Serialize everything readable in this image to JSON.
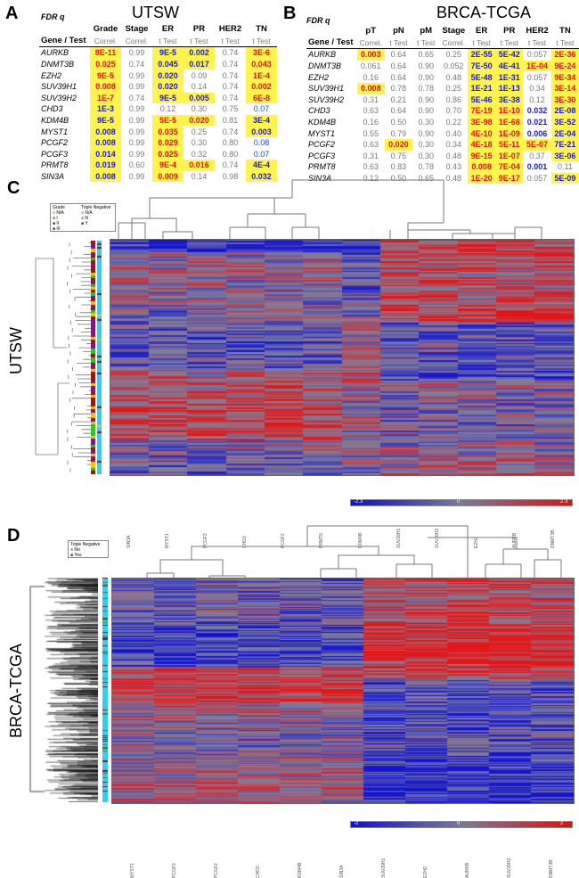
{
  "panelA": {
    "label": "A",
    "title": "UTSW",
    "fdr": "FDR q",
    "headers": [
      "Grade",
      "Stage",
      "ER",
      "PR",
      "HER2",
      "TN"
    ],
    "gene_test": "Gene / Test",
    "subheaders": [
      "Correl.",
      "Correl.",
      "t Test",
      "t Test",
      "t Test",
      "t Test"
    ],
    "rows": [
      {
        "gene": "AURKB",
        "v": [
          "8E-11",
          "0.99",
          "9E-5",
          "0.002",
          "0.74",
          "3E-6"
        ],
        "s": [
          "ry",
          "g",
          "by",
          "by",
          "g",
          "ry"
        ]
      },
      {
        "gene": "DNMT3B",
        "v": [
          "0.025",
          "0.74",
          "0.045",
          "0.017",
          "0.74",
          "0.043"
        ],
        "s": [
          "ry",
          "g",
          "by",
          "by",
          "g",
          "ry"
        ]
      },
      {
        "gene": "EZH2",
        "v": [
          "9E-5",
          "0.99",
          "0.020",
          "0.09",
          "0.74",
          "1E-4"
        ],
        "s": [
          "ry",
          "g",
          "by",
          "g",
          "g",
          "ry"
        ]
      },
      {
        "gene": "SUV39H1",
        "v": [
          "0.008",
          "0.99",
          "0.020",
          "0.14",
          "0.74",
          "0.002"
        ],
        "s": [
          "ry",
          "g",
          "by",
          "g",
          "g",
          "ry"
        ]
      },
      {
        "gene": "SUV39H2",
        "v": [
          "1E-7",
          "0.74",
          "9E-5",
          "0.005",
          "0.74",
          "6E-8"
        ],
        "s": [
          "ry",
          "g",
          "by",
          "by",
          "g",
          "ry"
        ]
      },
      {
        "gene": "CHD3",
        "v": [
          "1E-3",
          "0.99",
          "0.12",
          "0.30",
          "0.75",
          "0.07"
        ],
        "s": [
          "by",
          "g",
          "g",
          "g",
          "g",
          "lb"
        ]
      },
      {
        "gene": "KDM4B",
        "v": [
          "9E-5",
          "0.99",
          "5E-5",
          "0.020",
          "0.81",
          "3E-4"
        ],
        "s": [
          "by",
          "g",
          "ry",
          "ry",
          "g",
          "by"
        ]
      },
      {
        "gene": "MYST1",
        "v": [
          "0.008",
          "0.99",
          "0.035",
          "0.25",
          "0.74",
          "0.003"
        ],
        "s": [
          "by",
          "g",
          "ry",
          "g",
          "g",
          "by"
        ]
      },
      {
        "gene": "PCGF2",
        "v": [
          "0.008",
          "0.99",
          "0.029",
          "0.30",
          "0.80",
          "0.08"
        ],
        "s": [
          "by",
          "g",
          "ry",
          "g",
          "g",
          "lb"
        ]
      },
      {
        "gene": "PCGF3",
        "v": [
          "0.014",
          "0.99",
          "0.025",
          "0.32",
          "0.80",
          "0.07"
        ],
        "s": [
          "by",
          "g",
          "ry",
          "g",
          "g",
          "lb"
        ]
      },
      {
        "gene": "PRMT8",
        "v": [
          "0.019",
          "0.60",
          "9E-4",
          "0.016",
          "0.74",
          "4E-4"
        ],
        "s": [
          "by",
          "g",
          "ry",
          "ry",
          "g",
          "by"
        ]
      },
      {
        "gene": "SIN3A",
        "v": [
          "0.008",
          "0.99",
          "0.009",
          "0.14",
          "0.98",
          "0.032"
        ],
        "s": [
          "by",
          "g",
          "ry",
          "g",
          "g",
          "by"
        ]
      }
    ]
  },
  "panelB": {
    "label": "B",
    "title": "BRCA-TCGA",
    "fdr": "FDR q",
    "headers": [
      "pT",
      "pN",
      "pM",
      "Stage",
      "ER",
      "PR",
      "HER2",
      "TN"
    ],
    "gene_test": "Gene / Test",
    "subheaders": [
      "Correl.",
      "t Test",
      "t Test",
      "Correl.",
      "t Test",
      "t Test",
      "t Test",
      "t Test"
    ],
    "rows": [
      {
        "gene": "AURKB",
        "v": [
          "0.003",
          "0.64",
          "0.65",
          "0.25",
          "2E-55",
          "5E-42",
          "0.057",
          "2E-36"
        ],
        "s": [
          "ry",
          "g",
          "g",
          "g",
          "by",
          "by",
          "g",
          "ry"
        ]
      },
      {
        "gene": "DNMT3B",
        "v": [
          "0.061",
          "0.64",
          "0.90",
          "0.052",
          "7E-50",
          "4E-41",
          "1E-04",
          "9E-24"
        ],
        "s": [
          "g",
          "g",
          "g",
          "g",
          "by",
          "by",
          "ry",
          "ry"
        ]
      },
      {
        "gene": "EZH2",
        "v": [
          "0.16",
          "0.64",
          "0.90",
          "0.48",
          "5E-48",
          "1E-31",
          "0.057",
          "9E-34"
        ],
        "s": [
          "g",
          "g",
          "g",
          "g",
          "by",
          "by",
          "g",
          "ry"
        ]
      },
      {
        "gene": "SUV39H1",
        "v": [
          "0.008",
          "0.78",
          "0.78",
          "0.25",
          "1E-21",
          "1E-13",
          "0.34",
          "3E-14"
        ],
        "s": [
          "ry",
          "g",
          "g",
          "g",
          "by",
          "by",
          "g",
          "ry"
        ]
      },
      {
        "gene": "SUV39H2",
        "v": [
          "0.31",
          "0.21",
          "0.90",
          "0.86",
          "5E-46",
          "3E-38",
          "0.12",
          "3E-30"
        ],
        "s": [
          "g",
          "g",
          "g",
          "g",
          "by",
          "by",
          "g",
          "ry"
        ]
      },
      {
        "gene": "CHD3",
        "v": [
          "0.63",
          "0.64",
          "0.90",
          "0.70",
          "7E-19",
          "1E-10",
          "0.032",
          "2E-08"
        ],
        "s": [
          "g",
          "g",
          "g",
          "g",
          "ry",
          "ry",
          "bb",
          "by"
        ]
      },
      {
        "gene": "KDM4B",
        "v": [
          "0.16",
          "0.50",
          "0.30",
          "0.22",
          "3E-98",
          "1E-66",
          "0.021",
          "3E-52"
        ],
        "s": [
          "g",
          "g",
          "g",
          "g",
          "ry",
          "ry",
          "bb",
          "by"
        ]
      },
      {
        "gene": "MYST1",
        "v": [
          "0.55",
          "0.79",
          "0.90",
          "0.40",
          "4E-10",
          "1E-09",
          "0.006",
          "2E-04"
        ],
        "s": [
          "g",
          "g",
          "g",
          "g",
          "ry",
          "ry",
          "bb",
          "by"
        ]
      },
      {
        "gene": "PCGF2",
        "v": [
          "0.63",
          "0.020",
          "0.30",
          "0.34",
          "4E-18",
          "5E-11",
          "5E-07",
          "7E-21"
        ],
        "s": [
          "g",
          "ry",
          "g",
          "g",
          "ry",
          "ry",
          "ry",
          "by"
        ]
      },
      {
        "gene": "PCGF3",
        "v": [
          "0.31",
          "0.75",
          "0.30",
          "0.48",
          "9E-15",
          "1E-07",
          "0.37",
          "3E-06"
        ],
        "s": [
          "g",
          "g",
          "g",
          "g",
          "ry",
          "ry",
          "g",
          "by"
        ]
      },
      {
        "gene": "PRMT8",
        "v": [
          "0.63",
          "0.83",
          "0.78",
          "0.43",
          "0.008",
          "7E-04",
          "0.001",
          "0.11"
        ],
        "s": [
          "g",
          "g",
          "g",
          "g",
          "ry",
          "ry",
          "bb",
          "g"
        ]
      },
      {
        "gene": "SIN3A",
        "v": [
          "0.12",
          "0.50",
          "0.65",
          "0.48",
          "1E-20",
          "9E-17",
          "0.057",
          "5E-09"
        ],
        "s": [
          "g",
          "g",
          "g",
          "g",
          "ry",
          "ry",
          "g",
          "by"
        ]
      }
    ]
  },
  "panelC": {
    "label": "C",
    "side_label": "UTSW",
    "legend_grade_title": "Grade",
    "legend_grade": [
      "N/A",
      "I",
      "II",
      "III"
    ],
    "legend_tn_title": "Triple Negative",
    "legend_tn": [
      "N/A",
      "N",
      "Y"
    ],
    "columns": [
      "SIN3A",
      "MYST1",
      "PCGF3",
      "CHD3",
      "PCGF2",
      "PRMT8",
      "KDM4B",
      "SUV39H1",
      "SUV39H2",
      "EZH2",
      "AURKB",
      "DNMT3B"
    ],
    "scale_min": "-2.3",
    "scale_mid": "0",
    "scale_max": "2.3"
  },
  "panelD": {
    "label": "D",
    "side_label": "BRCA-TCGA",
    "legend_tn_title": "Triple Negative",
    "legend_tn": [
      "No",
      "Yes"
    ],
    "columns": [
      "MYST1",
      "PCGF3",
      "PCGF2",
      "CHD3",
      "KDM4B",
      "SIN3A",
      "SUV39H1",
      "EZH2",
      "AURKB",
      "SUV39H2",
      "DNMT3B"
    ],
    "scale_min": "-2",
    "scale_mid": "0",
    "scale_max": "2"
  },
  "colors": {
    "yellow": "#fff34d",
    "blue_text": "#1a1ad6",
    "red_text": "#e01414",
    "heat_blue": "#1414d2",
    "heat_red": "#e81414",
    "heat_grey": "#7f7f9a"
  }
}
